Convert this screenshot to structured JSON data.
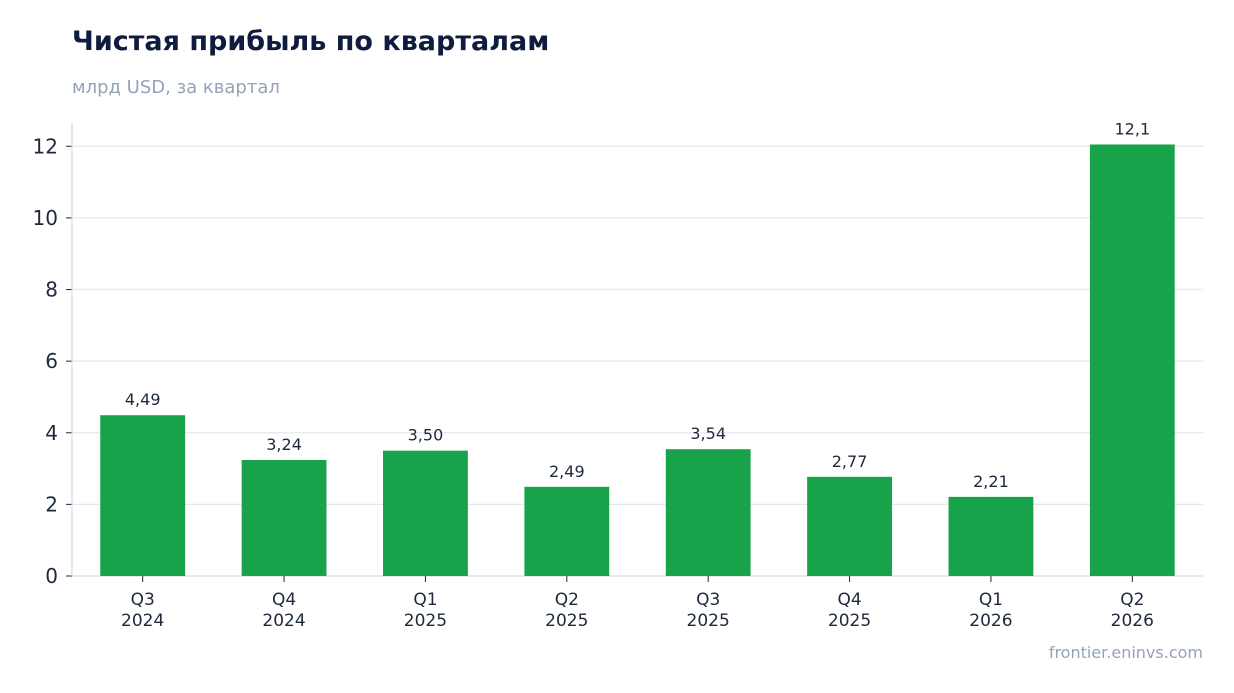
{
  "header": {
    "title": "Чистая прибыль по кварталам",
    "subtitle": "млрд USD, за квартал"
  },
  "footer": {
    "source": "frontier.eninvs.com"
  },
  "colors": {
    "bar": "#18a34a",
    "grid": "#e2e8f0",
    "axis": "#cbd5e1",
    "title": "#0f1c3f",
    "muted": "#94a3b8",
    "text": "#1e293b"
  },
  "chart_data": {
    "type": "bar",
    "title": "Чистая прибыль по кварталам",
    "subtitle": "млрд USD, за квартал",
    "xlabel": "",
    "ylabel": "",
    "categories": [
      [
        "Q3",
        "2024"
      ],
      [
        "Q4",
        "2024"
      ],
      [
        "Q1",
        "2025"
      ],
      [
        "Q2",
        "2025"
      ],
      [
        "Q3",
        "2025"
      ],
      [
        "Q4",
        "2025"
      ],
      [
        "Q1",
        "2026"
      ],
      [
        "Q2",
        "2026"
      ]
    ],
    "values": [
      4.49,
      3.24,
      3.5,
      2.49,
      3.54,
      2.77,
      2.21,
      12.05
    ],
    "data_labels": [
      "4,49",
      "3,24",
      "3,50",
      "2,49",
      "3,54",
      "2,77",
      "2,21",
      "12,1"
    ],
    "yticks": [
      0,
      2,
      4,
      6,
      8,
      10,
      12
    ],
    "ylim": [
      0,
      12.65
    ],
    "grid": "horizontal",
    "legend": "none"
  }
}
